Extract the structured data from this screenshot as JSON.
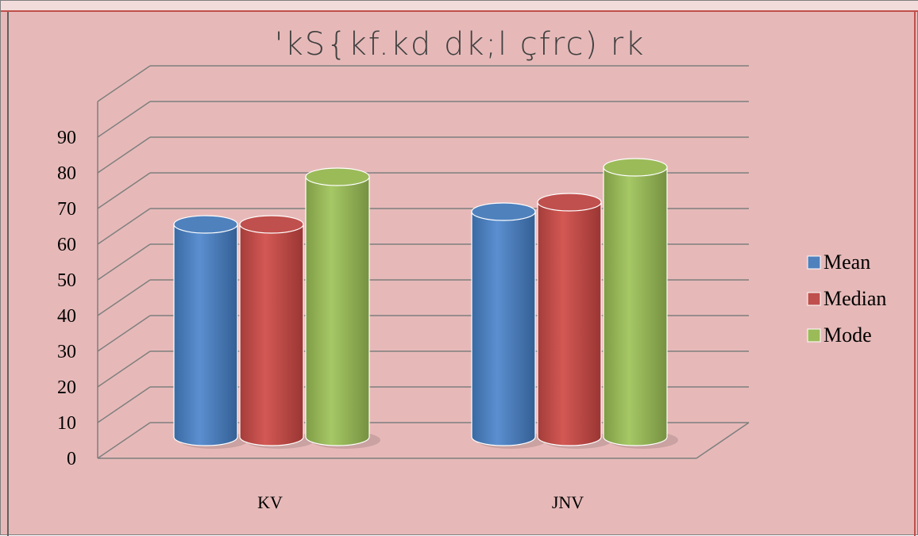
{
  "chart_data": {
    "type": "bar",
    "style": "3d-cylinder",
    "title": "'kS{kf.kd dk;l çfrc) rk",
    "categories": [
      "KV",
      "JNV"
    ],
    "series": [
      {
        "name": "Mean",
        "values": [
          67,
          71
        ],
        "color": "#4f81bd"
      },
      {
        "name": "Median",
        "values": [
          67,
          74
        ],
        "color": "#c0504d"
      },
      {
        "name": "Mode",
        "values": [
          82,
          85
        ],
        "color": "#9bbb59"
      }
    ],
    "ylim": [
      0,
      90
    ],
    "yticks": [
      "0",
      "10",
      "20",
      "30",
      "40",
      "50",
      "60",
      "70",
      "80",
      "90"
    ],
    "xlabel": "",
    "ylabel": "",
    "grid": true,
    "legend_position": "right",
    "background_color": "#e6b9b8"
  }
}
